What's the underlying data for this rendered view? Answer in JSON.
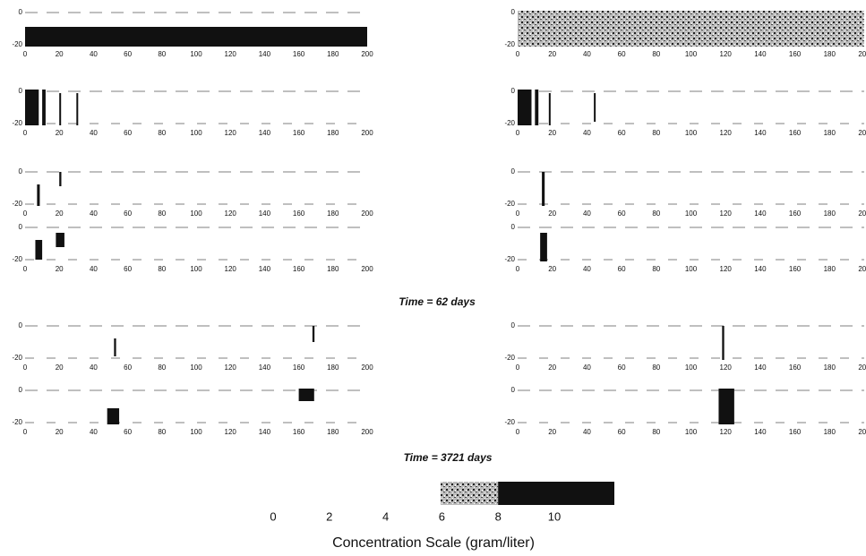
{
  "figure": {
    "panel_axes": {
      "xticks": [
        0,
        20,
        40,
        60,
        80,
        100,
        120,
        140,
        160,
        180,
        200
      ],
      "yticks": [
        0,
        -20
      ]
    },
    "captions": [
      "Time = 62 days",
      "Time = 3721 days"
    ],
    "colorbar": {
      "ticks": [
        0,
        2,
        4,
        6,
        8,
        10
      ],
      "label": "Concentration Scale (gram/liter)"
    }
  }
}
